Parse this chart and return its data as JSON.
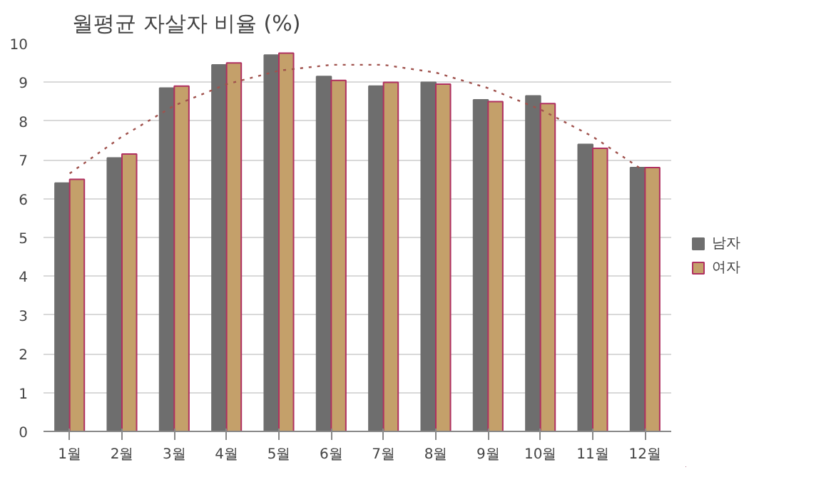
{
  "chart_data": {
    "type": "bar",
    "title": "월평균 자살자 비율 (%)",
    "categories": [
      "1월",
      "2월",
      "3월",
      "4월",
      "5월",
      "6월",
      "7월",
      "8월",
      "9월",
      "10월",
      "11월",
      "12월"
    ],
    "series": [
      {
        "name": "남자",
        "color": "#6e6e6e",
        "values": [
          6.4,
          7.05,
          8.85,
          9.45,
          9.7,
          9.15,
          8.9,
          9.0,
          8.55,
          8.65,
          7.4,
          6.8
        ]
      },
      {
        "name": "여자",
        "color": "#c4a06a",
        "values": [
          6.5,
          7.15,
          8.9,
          9.5,
          9.75,
          9.05,
          9.0,
          8.95,
          8.5,
          8.45,
          7.3,
          6.8
        ]
      },
      {
        "type": "line",
        "color": "#a0524d",
        "line_style": "dotted",
        "values": [
          6.65,
          7.6,
          8.4,
          8.95,
          9.3,
          9.45,
          9.45,
          9.25,
          8.85,
          8.3,
          7.6,
          6.7
        ]
      }
    ],
    "ylim": [
      0,
      10
    ],
    "yticks": [
      0,
      1,
      2,
      3,
      4,
      5,
      6,
      7,
      8,
      9,
      10
    ],
    "grid": "y",
    "legend": "right"
  }
}
